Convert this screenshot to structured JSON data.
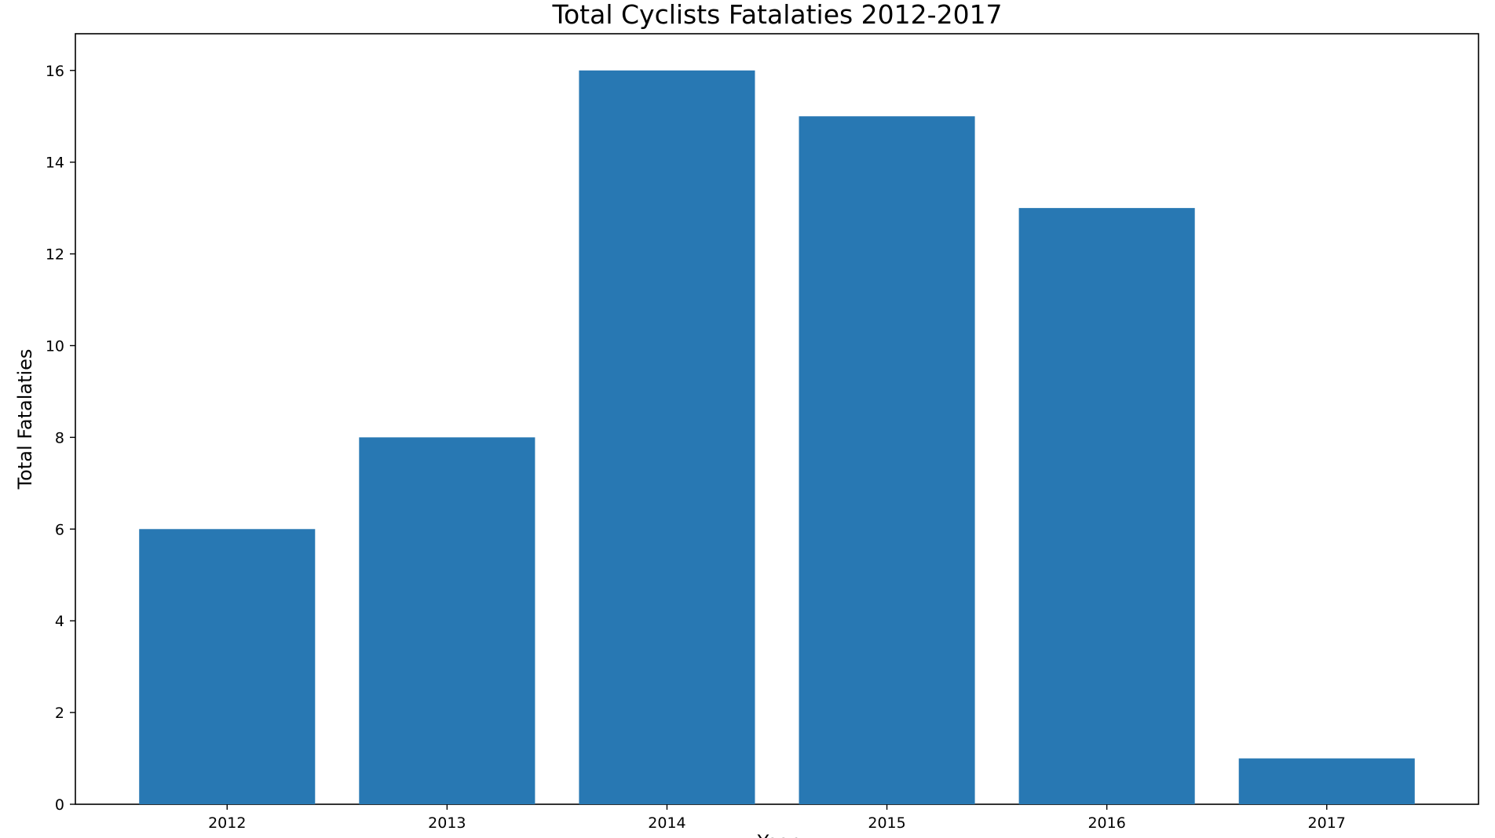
{
  "chart_data": {
    "type": "bar",
    "title": "Total Cyclists Fatalaties 2012-2017",
    "xlabel": "Year",
    "ylabel": "Total Fatalaties",
    "categories": [
      "2012",
      "2013",
      "2014",
      "2015",
      "2016",
      "2017"
    ],
    "values": [
      6,
      8,
      16,
      15,
      13,
      1
    ],
    "ylim": [
      0,
      16.8
    ],
    "yticks": [
      0,
      2,
      4,
      6,
      8,
      10,
      12,
      14,
      16
    ],
    "grid": false,
    "bar_color": "#2878b3"
  }
}
